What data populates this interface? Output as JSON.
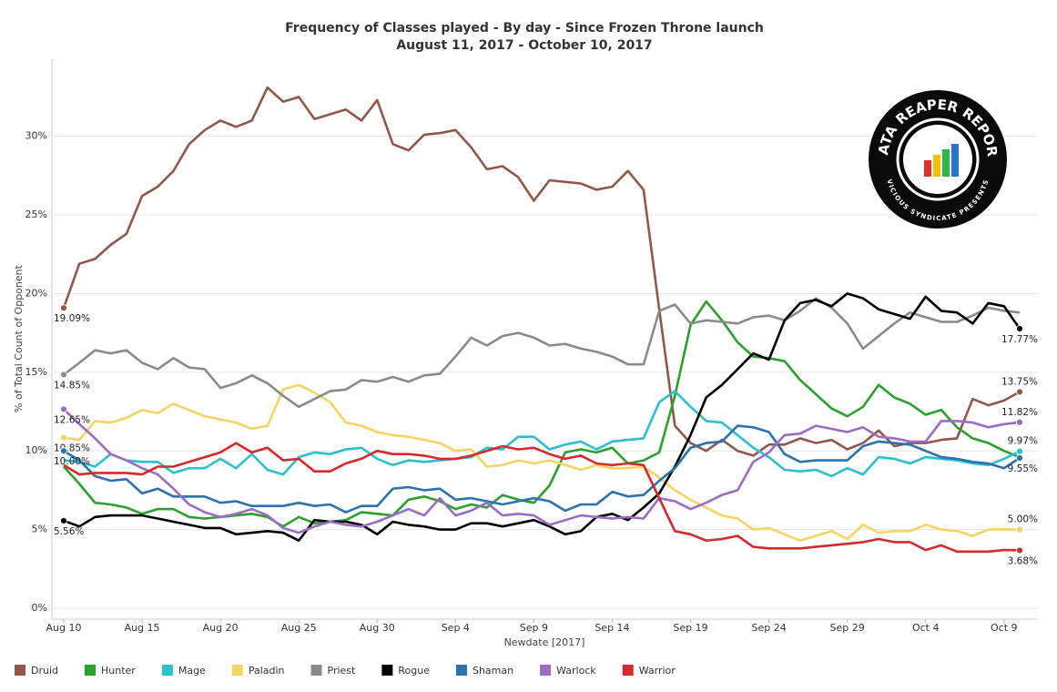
{
  "chart_data": {
    "type": "line",
    "title": "Frequency of Classes played - By day - Since Frozen Throne launch",
    "subtitle": "August 11, 2017 - October 10, 2017",
    "x_label": "Newdate [2017]",
    "y_label": "% of Total Count of Opponent",
    "logo": {
      "title": "DATA REAPER REPORT",
      "subtitle": "VICIOUS SYNDICATE PRESENTS"
    },
    "legend": "bottom",
    "grid": true,
    "categories": [
      "Aug 10",
      null,
      null,
      null,
      null,
      "Aug 15",
      null,
      null,
      null,
      null,
      "Aug 20",
      null,
      null,
      null,
      null,
      "Aug 25",
      null,
      null,
      null,
      null,
      "Aug 30",
      null,
      null,
      null,
      null,
      "Sep 4",
      null,
      null,
      null,
      null,
      "Sep 9",
      null,
      null,
      null,
      null,
      "Sep 14",
      null,
      null,
      null,
      null,
      "Sep 19",
      null,
      null,
      null,
      null,
      "Sep 24",
      null,
      null,
      null,
      null,
      "Sep 29",
      null,
      null,
      null,
      null,
      "Oct 4",
      null,
      null,
      null,
      null,
      "Oct 9",
      null
    ],
    "ylim": [
      0,
      34.9
    ],
    "yticks": [
      {
        "value": 0,
        "label": "0%"
      },
      {
        "value": 5,
        "label": "5%"
      },
      {
        "value": 10,
        "label": "10%"
      },
      {
        "value": 15,
        "label": "15%"
      },
      {
        "value": 20,
        "label": "20%"
      },
      {
        "value": 25,
        "label": "25%"
      },
      {
        "value": 30,
        "label": "30%"
      }
    ],
    "series": [
      {
        "name": "Druid",
        "color": "#93574a",
        "values": [
          19.09,
          21.9,
          22.2,
          23.1,
          23.8,
          26.2,
          26.8,
          27.8,
          29.5,
          30.4,
          31.0,
          30.6,
          31.0,
          33.1,
          32.2,
          32.5,
          31.1,
          31.4,
          31.7,
          31.0,
          32.3,
          29.5,
          29.1,
          30.1,
          30.2,
          30.4,
          29.3,
          27.9,
          28.1,
          27.4,
          25.9,
          27.2,
          27.1,
          27.0,
          26.6,
          26.8,
          27.8,
          26.6,
          19.0,
          11.6,
          10.5,
          10.0,
          10.7,
          10.0,
          9.7,
          10.4,
          10.4,
          10.8,
          10.5,
          10.7,
          10.1,
          10.5,
          11.3,
          10.3,
          10.5,
          10.5,
          10.7,
          10.8,
          13.3,
          12.9,
          13.2,
          13.75
        ],
        "value_labels": [
          "19.09%",
          null,
          null,
          null,
          null,
          null,
          null,
          null,
          null,
          null,
          null,
          null,
          null,
          null,
          null,
          null,
          null,
          null,
          null,
          null,
          null,
          null,
          null,
          null,
          null,
          null,
          null,
          null,
          null,
          null,
          null,
          null,
          null,
          null,
          null,
          null,
          null,
          null,
          null,
          null,
          null,
          null,
          null,
          null,
          null,
          null,
          null,
          null,
          null,
          null,
          null,
          null,
          null,
          null,
          null,
          null,
          null,
          null,
          null,
          null,
          null,
          "13.75%"
        ]
      },
      {
        "name": "Hunter",
        "color": "#2ca02c",
        "values": [
          9.0,
          7.9,
          6.7,
          6.6,
          6.4,
          6.0,
          6.3,
          6.3,
          5.8,
          5.7,
          5.8,
          5.9,
          6.0,
          5.8,
          5.2,
          5.8,
          5.4,
          5.5,
          5.6,
          6.1,
          6.0,
          5.9,
          6.9,
          7.1,
          6.8,
          6.3,
          6.6,
          6.4,
          7.2,
          6.9,
          6.7,
          7.8,
          9.9,
          10.1,
          9.9,
          10.2,
          9.2,
          9.4,
          9.9,
          13.5,
          18.0,
          19.5,
          18.3,
          16.9,
          16.0,
          15.9,
          15.7,
          14.5,
          13.6,
          12.7,
          12.2,
          12.8,
          14.2,
          13.4,
          13.0,
          12.3,
          12.6,
          11.5,
          10.8,
          10.5,
          10.0,
          9.6
        ]
      },
      {
        "name": "Mage",
        "color": "#2bbfcf",
        "values": [
          9.4,
          9.3,
          9.0,
          9.8,
          9.4,
          9.3,
          9.3,
          8.6,
          8.9,
          8.9,
          9.5,
          8.9,
          9.8,
          8.8,
          8.5,
          9.6,
          9.9,
          9.8,
          10.1,
          10.2,
          9.5,
          9.1,
          9.4,
          9.3,
          9.4,
          9.5,
          9.6,
          10.2,
          10.1,
          10.9,
          10.9,
          10.1,
          10.4,
          10.6,
          10.1,
          10.6,
          10.7,
          10.8,
          13.1,
          13.8,
          12.8,
          11.9,
          11.8,
          11.0,
          10.2,
          9.6,
          8.8,
          8.7,
          8.8,
          8.4,
          8.9,
          8.5,
          9.6,
          9.5,
          9.2,
          9.6,
          9.5,
          9.4,
          9.2,
          9.1,
          9.5,
          9.97
        ],
        "value_labels": [
          null,
          null,
          null,
          null,
          null,
          null,
          null,
          null,
          null,
          null,
          null,
          null,
          null,
          null,
          null,
          null,
          null,
          null,
          null,
          null,
          null,
          null,
          null,
          null,
          null,
          null,
          null,
          null,
          null,
          null,
          null,
          null,
          null,
          null,
          null,
          null,
          null,
          null,
          null,
          null,
          null,
          null,
          null,
          null,
          null,
          null,
          null,
          null,
          null,
          null,
          null,
          null,
          null,
          null,
          null,
          null,
          null,
          null,
          null,
          null,
          null,
          "9.97%"
        ]
      },
      {
        "name": "Paladin",
        "color": "#f5d462",
        "values": [
          10.85,
          10.7,
          11.9,
          11.8,
          12.1,
          12.6,
          12.4,
          13.0,
          12.6,
          12.2,
          12.0,
          11.8,
          11.4,
          11.6,
          13.9,
          14.2,
          13.7,
          13.1,
          11.8,
          11.6,
          11.2,
          11.0,
          10.9,
          10.7,
          10.5,
          10.0,
          10.1,
          9.0,
          9.1,
          9.4,
          9.2,
          9.4,
          9.1,
          8.8,
          9.1,
          8.9,
          8.9,
          9.0,
          8.3,
          7.5,
          6.9,
          6.4,
          5.9,
          5.7,
          5.0,
          5.1,
          4.7,
          4.3,
          4.6,
          4.9,
          4.4,
          5.3,
          4.8,
          4.9,
          4.9,
          5.3,
          5.0,
          4.9,
          4.6,
          5.0,
          5.0,
          5
        ],
        "value_labels": [
          "10.85%",
          null,
          null,
          null,
          null,
          null,
          null,
          null,
          null,
          null,
          null,
          null,
          null,
          null,
          null,
          null,
          null,
          null,
          null,
          null,
          null,
          null,
          null,
          null,
          null,
          null,
          null,
          null,
          null,
          null,
          null,
          null,
          null,
          null,
          null,
          null,
          null,
          null,
          null,
          null,
          null,
          null,
          null,
          null,
          null,
          null,
          null,
          null,
          null,
          null,
          null,
          null,
          null,
          null,
          null,
          null,
          null,
          null,
          null,
          null,
          null,
          "5.00%"
        ]
      },
      {
        "name": "Priest",
        "color": "#8a8a8a",
        "values": [
          14.85,
          15.6,
          16.4,
          16.2,
          16.4,
          15.6,
          15.2,
          15.9,
          15.3,
          15.2,
          14.0,
          14.3,
          14.8,
          14.3,
          13.5,
          12.8,
          13.3,
          13.8,
          13.9,
          14.5,
          14.4,
          14.7,
          14.4,
          14.8,
          14.9,
          16.0,
          17.2,
          16.7,
          17.3,
          17.5,
          17.2,
          16.7,
          16.8,
          16.5,
          16.3,
          16.0,
          15.5,
          15.5,
          18.9,
          19.3,
          18.1,
          18.3,
          18.2,
          18.1,
          18.5,
          18.6,
          18.3,
          18.9,
          19.7,
          19.1,
          18.1,
          16.5,
          17.3,
          18.1,
          18.8,
          18.5,
          18.2,
          18.2,
          18.6,
          19.1,
          18.9,
          18.8
        ],
        "value_labels": [
          "14.85%",
          null,
          null,
          null,
          null,
          null,
          null,
          null,
          null,
          null,
          null,
          null,
          null,
          null,
          null,
          null,
          null,
          null,
          null,
          null,
          null,
          null,
          null,
          null,
          null,
          null,
          null,
          null,
          null,
          null,
          null,
          null,
          null,
          null,
          null,
          null,
          null,
          null,
          null,
          null,
          null,
          null,
          null,
          null,
          null,
          null,
          null,
          null,
          null,
          null,
          null,
          null,
          null,
          null,
          null,
          null,
          null,
          null,
          null,
          null,
          null,
          null
        ]
      },
      {
        "name": "Rogue",
        "color": "#000000",
        "values": [
          5.56,
          5.2,
          5.8,
          5.9,
          5.9,
          5.9,
          5.7,
          5.5,
          5.3,
          5.1,
          5.1,
          4.7,
          4.8,
          4.9,
          4.8,
          4.3,
          5.6,
          5.5,
          5.5,
          5.3,
          4.7,
          5.5,
          5.3,
          5.2,
          5.0,
          5.0,
          5.4,
          5.4,
          5.2,
          5.4,
          5.6,
          5.2,
          4.7,
          4.9,
          5.8,
          6.0,
          5.6,
          6.4,
          7.3,
          9.0,
          11.0,
          13.4,
          14.2,
          15.2,
          16.2,
          15.8,
          18.3,
          19.4,
          19.6,
          19.2,
          20.0,
          19.7,
          19.0,
          18.7,
          18.4,
          19.8,
          18.9,
          18.8,
          18.1,
          19.4,
          19.2,
          17.77
        ],
        "value_labels": [
          "5.56%",
          null,
          null,
          null,
          null,
          null,
          null,
          null,
          null,
          null,
          null,
          null,
          null,
          null,
          null,
          null,
          null,
          null,
          null,
          null,
          null,
          null,
          null,
          null,
          null,
          null,
          null,
          null,
          null,
          null,
          null,
          null,
          null,
          null,
          null,
          null,
          null,
          null,
          null,
          null,
          null,
          null,
          null,
          null,
          null,
          null,
          null,
          null,
          null,
          null,
          null,
          null,
          null,
          null,
          null,
          null,
          null,
          null,
          null,
          null,
          null,
          "17.77%"
        ]
      },
      {
        "name": "Shaman",
        "color": "#2a72b0",
        "values": [
          10.0,
          9.4,
          8.4,
          8.1,
          8.2,
          7.3,
          7.6,
          7.1,
          7.1,
          7.1,
          6.7,
          6.8,
          6.5,
          6.5,
          6.5,
          6.7,
          6.5,
          6.6,
          6.1,
          6.5,
          6.5,
          7.6,
          7.7,
          7.5,
          7.6,
          6.9,
          7.0,
          6.8,
          6.6,
          6.8,
          7.0,
          6.8,
          6.2,
          6.6,
          6.6,
          7.4,
          7.1,
          7.2,
          8.1,
          8.9,
          10.2,
          10.5,
          10.6,
          11.6,
          11.5,
          11.2,
          9.8,
          9.3,
          9.4,
          9.4,
          9.4,
          10.3,
          10.6,
          10.5,
          10.4,
          10.0,
          9.6,
          9.5,
          9.3,
          9.2,
          8.9,
          9.55
        ],
        "value_labels": [
          "10.00%",
          null,
          null,
          null,
          null,
          null,
          null,
          null,
          null,
          null,
          null,
          null,
          null,
          null,
          null,
          null,
          null,
          null,
          null,
          null,
          null,
          null,
          null,
          null,
          null,
          null,
          null,
          null,
          null,
          null,
          null,
          null,
          null,
          null,
          null,
          null,
          null,
          null,
          null,
          null,
          null,
          null,
          null,
          null,
          null,
          null,
          null,
          null,
          null,
          null,
          null,
          null,
          null,
          null,
          null,
          null,
          null,
          null,
          null,
          null,
          null,
          "9.55%"
        ]
      },
      {
        "name": "Warlock",
        "color": "#9b6cc4",
        "values": [
          12.65,
          11.7,
          10.8,
          9.8,
          9.4,
          8.9,
          8.5,
          7.6,
          6.6,
          6.1,
          5.8,
          6.0,
          6.3,
          5.9,
          5.1,
          4.8,
          5.2,
          5.5,
          5.3,
          5.2,
          5.5,
          5.9,
          6.3,
          5.9,
          7.0,
          5.9,
          6.2,
          6.7,
          5.9,
          6.0,
          5.9,
          5.3,
          5.6,
          5.9,
          5.8,
          5.7,
          5.8,
          5.7,
          7.0,
          6.8,
          6.3,
          6.7,
          7.2,
          7.5,
          9.3,
          9.9,
          11.0,
          11.1,
          11.6,
          11.4,
          11.2,
          11.5,
          10.9,
          10.8,
          10.6,
          10.6,
          11.9,
          11.9,
          11.8,
          11.5,
          11.7,
          11.82
        ],
        "value_labels": [
          "12.65%",
          null,
          null,
          null,
          null,
          null,
          null,
          null,
          null,
          null,
          null,
          null,
          null,
          null,
          null,
          null,
          null,
          null,
          null,
          null,
          null,
          null,
          null,
          null,
          null,
          null,
          null,
          null,
          null,
          null,
          null,
          null,
          null,
          null,
          null,
          null,
          null,
          null,
          null,
          null,
          null,
          null,
          null,
          null,
          null,
          null,
          null,
          null,
          null,
          null,
          null,
          null,
          null,
          null,
          null,
          null,
          null,
          null,
          null,
          null,
          null,
          "11.82%"
        ]
      },
      {
        "name": "Warrior",
        "color": "#d62a2a",
        "values": [
          9.1,
          8.5,
          8.6,
          8.6,
          8.6,
          8.5,
          9.0,
          9.0,
          9.3,
          9.6,
          9.9,
          10.5,
          9.9,
          10.2,
          9.4,
          9.5,
          8.7,
          8.7,
          9.2,
          9.5,
          10.0,
          9.8,
          9.8,
          9.7,
          9.5,
          9.5,
          9.7,
          10.0,
          10.3,
          10.1,
          10.2,
          9.8,
          9.5,
          9.7,
          9.2,
          9.1,
          9.2,
          9.1,
          7.0,
          4.9,
          4.7,
          4.3,
          4.4,
          4.6,
          3.9,
          3.8,
          3.8,
          3.8,
          3.9,
          4.0,
          4.1,
          4.2,
          4.4,
          4.2,
          4.2,
          3.7,
          4.0,
          3.6,
          3.6,
          3.6,
          3.7,
          3.68
        ],
        "value_labels": [
          null,
          null,
          null,
          null,
          null,
          null,
          null,
          null,
          null,
          null,
          null,
          null,
          null,
          null,
          null,
          null,
          null,
          null,
          null,
          null,
          null,
          null,
          null,
          null,
          null,
          null,
          null,
          null,
          null,
          null,
          null,
          null,
          null,
          null,
          null,
          null,
          null,
          null,
          null,
          null,
          null,
          null,
          null,
          null,
          null,
          null,
          null,
          null,
          null,
          null,
          null,
          null,
          null,
          null,
          null,
          null,
          null,
          null,
          null,
          null,
          null,
          "3.68%"
        ]
      }
    ]
  }
}
